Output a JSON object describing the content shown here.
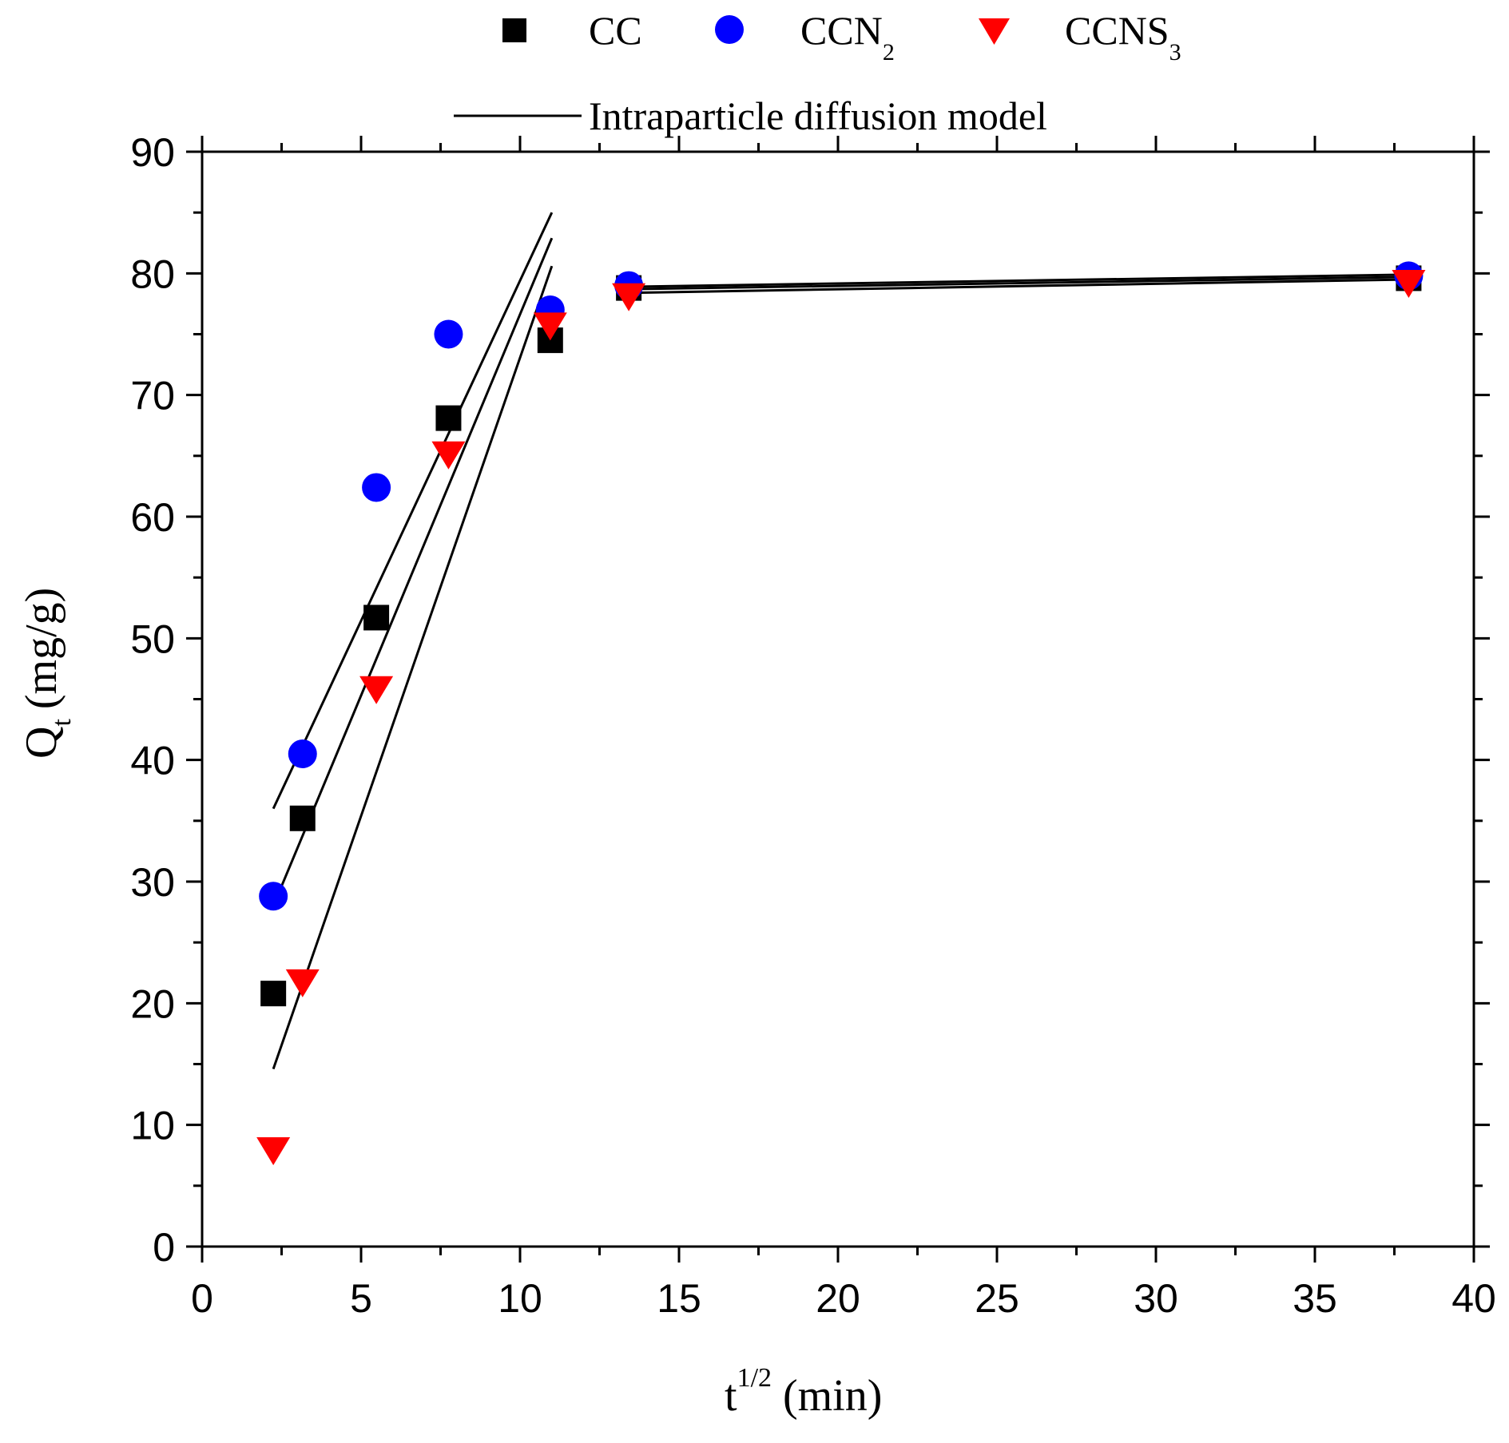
{
  "chart_data": {
    "type": "scatter",
    "title": "",
    "xlabel": {
      "base": "t",
      "sup": "1/2",
      "unit": "(min)"
    },
    "ylabel": {
      "base": "Q",
      "sub": "t",
      "unit": "(mg/g)"
    },
    "xlim": [
      0,
      40
    ],
    "ylim": [
      0,
      90
    ],
    "xticks": [
      0,
      5,
      10,
      15,
      20,
      25,
      30,
      35,
      40
    ],
    "yticks": [
      0,
      10,
      20,
      30,
      40,
      50,
      60,
      70,
      80,
      90
    ],
    "grid": false,
    "legend_position": "top",
    "series": [
      {
        "name": "CC",
        "name_base": "CC",
        "name_sub": "",
        "marker": "square",
        "color": "#000000",
        "points": [
          [
            2.24,
            20.8
          ],
          [
            3.16,
            35.2
          ],
          [
            5.48,
            51.7
          ],
          [
            7.75,
            68.1
          ],
          [
            10.95,
            74.5
          ],
          [
            13.42,
            78.8
          ],
          [
            37.95,
            79.6
          ]
        ]
      },
      {
        "name": "CCN2",
        "name_base": "CCN",
        "name_sub": "2",
        "marker": "circle",
        "color": "#0000ff",
        "points": [
          [
            2.24,
            28.8
          ],
          [
            3.16,
            40.5
          ],
          [
            5.48,
            62.4
          ],
          [
            7.75,
            75.0
          ],
          [
            10.95,
            77.0
          ],
          [
            13.42,
            79.0
          ],
          [
            37.95,
            79.8
          ]
        ]
      },
      {
        "name": "CCNS3",
        "name_base": "CCNS",
        "name_sub": "3",
        "marker": "triangle-down",
        "color": "#ff0000",
        "points": [
          [
            2.24,
            8.0
          ],
          [
            3.16,
            21.8
          ],
          [
            5.48,
            45.9
          ],
          [
            7.75,
            65.2
          ],
          [
            10.95,
            75.8
          ],
          [
            13.42,
            78.2
          ],
          [
            37.95,
            79.3
          ]
        ]
      }
    ],
    "fit_lines": {
      "name": "Intraparticle diffusion model",
      "color": "#000000",
      "segments": [
        [
          [
            2.24,
            36.0
          ],
          [
            11.0,
            85.0
          ]
        ],
        [
          [
            2.24,
            28.0
          ],
          [
            11.0,
            82.9
          ]
        ],
        [
          [
            2.24,
            14.6
          ],
          [
            11.0,
            80.6
          ]
        ],
        [
          [
            13.42,
            78.4
          ],
          [
            37.95,
            79.5
          ]
        ],
        [
          [
            13.42,
            78.7
          ],
          [
            37.95,
            79.7
          ]
        ],
        [
          [
            13.42,
            78.9
          ],
          [
            37.95,
            79.9
          ]
        ]
      ]
    }
  }
}
